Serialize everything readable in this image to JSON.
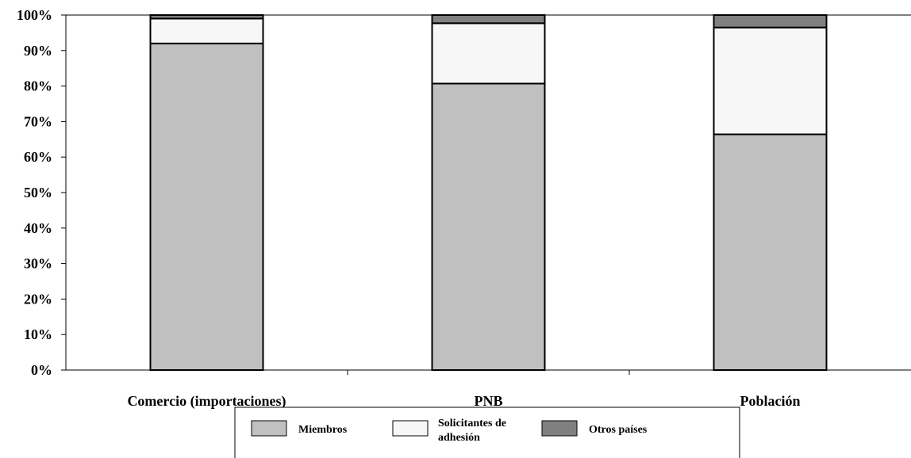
{
  "chart_data": {
    "type": "bar",
    "stacked": true,
    "percent": true,
    "categories": [
      "Comercio (importaciones)",
      "PNB",
      "Población"
    ],
    "series": [
      {
        "name": "Miembros",
        "values": [
          92,
          80.7,
          66.4
        ],
        "color": "#c0c0c0"
      },
      {
        "name": "Solicitantes de adhesión",
        "values": [
          7,
          17,
          30.1
        ],
        "color": "#f7f7f7"
      },
      {
        "name": "Otros países",
        "values": [
          1,
          2.3,
          3.5
        ],
        "color": "#808080"
      }
    ],
    "y_ticks": [
      "0%",
      "10%",
      "20%",
      "30%",
      "40%",
      "50%",
      "60%",
      "70%",
      "80%",
      "90%",
      "100%"
    ],
    "ylim": [
      0,
      100
    ],
    "grid": false,
    "legend_position": "bottom",
    "legend": {
      "miembros": "Miembros",
      "solicitantes_line1": "Solicitantes de",
      "solicitantes_line2": "adhesión",
      "otros": "Otros países"
    }
  }
}
